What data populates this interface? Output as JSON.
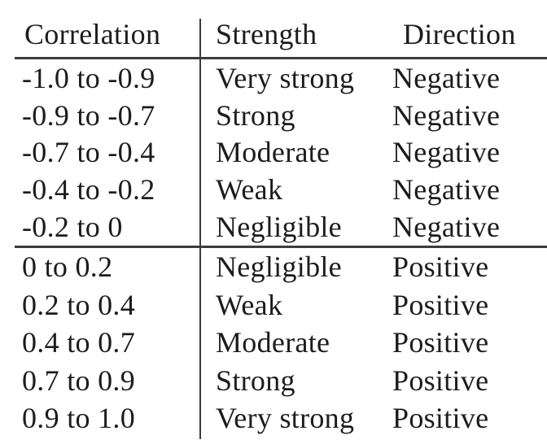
{
  "page": {
    "background_color": "#ffffff",
    "text_color": "#1c1c1c",
    "rule_color": "#3c3c3c"
  },
  "table": {
    "headers": {
      "correlation": "Correlation",
      "strength": "Strength",
      "direction": "Direction"
    },
    "rows": [
      {
        "correlation": "-1.0 to -0.9",
        "strength": "Very strong",
        "direction": "Negative"
      },
      {
        "correlation": "-0.9 to -0.7",
        "strength": "Strong",
        "direction": "Negative"
      },
      {
        "correlation": "-0.7 to -0.4",
        "strength": "Moderate",
        "direction": "Negative"
      },
      {
        "correlation": "-0.4 to -0.2",
        "strength": "Weak",
        "direction": "Negative"
      },
      {
        "correlation": "-0.2 to 0",
        "strength": "Negligible",
        "direction": "Negative"
      },
      {
        "correlation": "0 to 0.2",
        "strength": "Negligible",
        "direction": "Positive"
      },
      {
        "correlation": "0.2 to 0.4",
        "strength": "Weak",
        "direction": "Positive"
      },
      {
        "correlation": "0.4 to 0.7",
        "strength": "Moderate",
        "direction": "Positive"
      },
      {
        "correlation": "0.7 to 0.9",
        "strength": "Strong",
        "direction": "Positive"
      },
      {
        "correlation": "0.9 to 1.0",
        "strength": "Very strong",
        "direction": "Positive"
      }
    ]
  },
  "chart_data": {
    "type": "table",
    "columns": [
      "Correlation",
      "Strength",
      "Direction"
    ],
    "rows": [
      [
        "-1.0 to -0.9",
        "Very strong",
        "Negative"
      ],
      [
        "-0.9 to -0.7",
        "Strong",
        "Negative"
      ],
      [
        "-0.7 to -0.4",
        "Moderate",
        "Negative"
      ],
      [
        "-0.4 to -0.2",
        "Weak",
        "Negative"
      ],
      [
        "-0.2 to 0",
        "Negligible",
        "Negative"
      ],
      [
        "0 to 0.2",
        "Negligible",
        "Positive"
      ],
      [
        "0.2 to 0.4",
        "Weak",
        "Positive"
      ],
      [
        "0.4 to 0.7",
        "Moderate",
        "Positive"
      ],
      [
        "0.7 to 0.9",
        "Strong",
        "Positive"
      ],
      [
        "0.9 to 1.0",
        "Very strong",
        "Positive"
      ]
    ],
    "layout_hints": {
      "vertical_rule_after_column": 1,
      "horizontal_rules": [
        "below header",
        "between row 5 and row 6"
      ],
      "font_style": "latex-computer-modern-serif"
    }
  }
}
